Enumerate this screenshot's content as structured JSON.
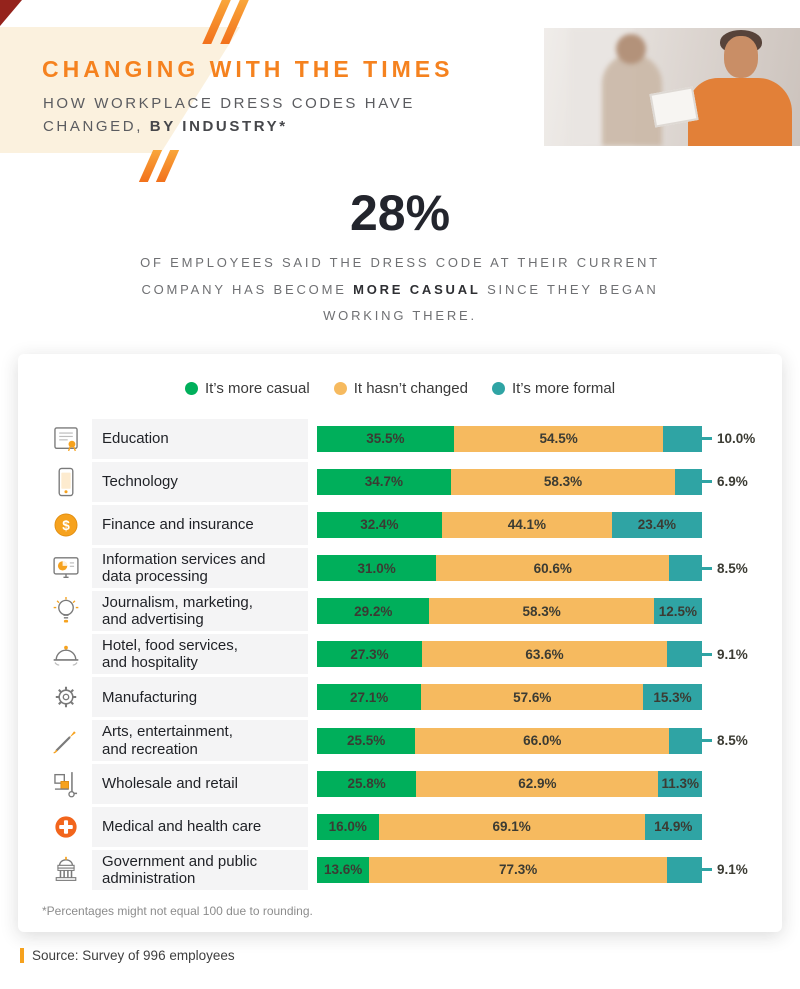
{
  "header": {
    "title": "CHANGING WITH THE TIMES",
    "subtitle_line1": "HOW WORKPLACE DRESS CODES HAVE",
    "subtitle_line2": "CHANGED,",
    "subtitle_line2_bold": "BY INDUSTRY*"
  },
  "stat": {
    "value": "28%",
    "line1": "OF EMPLOYEES SAID THE DRESS CODE AT THEIR CURRENT",
    "line2_prefix": "COMPANY HAS BECOME ",
    "line2_bold": "MORE CASUAL",
    "line2_suffix": " SINCE THEY BEGAN",
    "line3": "WORKING THERE."
  },
  "chart_data": {
    "type": "bar",
    "orientation": "horizontal",
    "stacked": true,
    "unit": "%",
    "xlim": [
      0,
      100
    ],
    "legend_position": "top",
    "outside_label_threshold": 10.5,
    "series": [
      {
        "key": "casual",
        "name": "It’s more casual",
        "color": "#00AF5B"
      },
      {
        "key": "unchanged",
        "name": "It hasn’t changed",
        "color": "#F6BA5F"
      },
      {
        "key": "formal",
        "name": "It’s more formal",
        "color": "#2FA4A4"
      }
    ],
    "rows": [
      {
        "icon": "education-icon",
        "label_lines": [
          "Education"
        ],
        "values": [
          35.5,
          54.5,
          10.0
        ]
      },
      {
        "icon": "technology-icon",
        "label_lines": [
          "Technology"
        ],
        "values": [
          34.7,
          58.3,
          6.9
        ]
      },
      {
        "icon": "finance-icon",
        "label_lines": [
          "Finance and insurance"
        ],
        "values": [
          32.4,
          44.1,
          23.4
        ]
      },
      {
        "icon": "information-icon",
        "label_lines": [
          "Information services and",
          "data processing"
        ],
        "values": [
          31.0,
          60.6,
          8.5
        ]
      },
      {
        "icon": "journalism-icon",
        "label_lines": [
          "Journalism, marketing,",
          "and advertising"
        ],
        "values": [
          29.2,
          58.3,
          12.5
        ]
      },
      {
        "icon": "hotel-icon",
        "label_lines": [
          "Hotel, food services,",
          "and hospitality"
        ],
        "values": [
          27.3,
          63.6,
          9.1
        ]
      },
      {
        "icon": "manufacturing-icon",
        "label_lines": [
          "Manufacturing"
        ],
        "values": [
          27.1,
          57.6,
          15.3
        ]
      },
      {
        "icon": "arts-icon",
        "label_lines": [
          "Arts, entertainment,",
          "and recreation"
        ],
        "values": [
          25.5,
          66.0,
          8.5
        ]
      },
      {
        "icon": "wholesale-icon",
        "label_lines": [
          "Wholesale and retail"
        ],
        "values": [
          25.8,
          62.9,
          11.3
        ]
      },
      {
        "icon": "medical-icon",
        "label_lines": [
          "Medical and health care"
        ],
        "values": [
          16.0,
          69.1,
          14.9
        ]
      },
      {
        "icon": "government-icon",
        "label_lines": [
          "Government and public",
          "administration"
        ],
        "values": [
          13.6,
          77.3,
          9.1
        ]
      }
    ]
  },
  "footnote": "*Percentages might not equal 100 due to rounding.",
  "source": "Source: Survey of 996 employees",
  "colors": {
    "title_orange": "#F5821F",
    "accent_orange": "#F6A21E",
    "green": "#00AF5B",
    "amber": "#F6BA5F",
    "teal": "#2FA4A4"
  }
}
